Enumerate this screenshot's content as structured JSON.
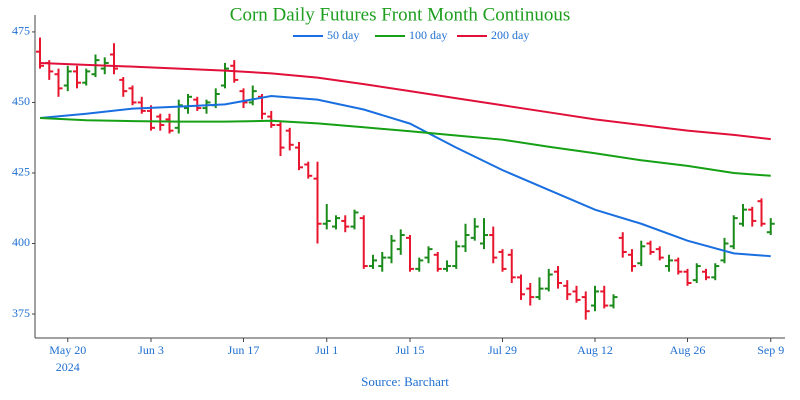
{
  "chart_data": {
    "type": "ohlc",
    "title": "Corn Daily Futures Front Month Continuous",
    "source": "Source: Barchart",
    "title_color": "#1e9e1e",
    "axis_text_color": "#1f6fd0",
    "up_color": "#1a8a1a",
    "down_color": "#e8152e",
    "categories": [
      "May 15",
      "May 16",
      "May 17",
      "May 20",
      "May 21",
      "May 22",
      "May 23",
      "May 24",
      "May 28",
      "May 29",
      "May 30",
      "May 31",
      "Jun 3",
      "Jun 4",
      "Jun 5",
      "Jun 6",
      "Jun 7",
      "Jun 10",
      "Jun 11",
      "Jun 12",
      "Jun 13",
      "Jun 14",
      "Jun 17",
      "Jun 18",
      "Jun 20",
      "Jun 21",
      "Jun 24",
      "Jun 25",
      "Jun 26",
      "Jun 27",
      "Jun 28",
      "Jul 1",
      "Jul 2",
      "Jul 3",
      "Jul 5",
      "Jul 8",
      "Jul 9",
      "Jul 10",
      "Jul 11",
      "Jul 12",
      "Jul 15",
      "Jul 16",
      "Jul 17",
      "Jul 18",
      "Jul 19",
      "Jul 22",
      "Jul 23",
      "Jul 24",
      "Jul 25",
      "Jul 26",
      "Jul 29",
      "Jul 30",
      "Jul 31",
      "Aug 1",
      "Aug 2",
      "Aug 5",
      "Aug 6",
      "Aug 7",
      "Aug 8",
      "Aug 9",
      "Aug 12",
      "Aug 13",
      "Aug 14",
      "Aug 15",
      "Aug 16",
      "Aug 19",
      "Aug 20",
      "Aug 21",
      "Aug 22",
      "Aug 23",
      "Aug 26",
      "Aug 27",
      "Aug 28",
      "Aug 29",
      "Aug 30",
      "Sep 3",
      "Sep 4",
      "Sep 5",
      "Sep 6",
      "Sep 9"
    ],
    "open": [
      468,
      464,
      460,
      456,
      461,
      457,
      460,
      462,
      467,
      458,
      455,
      450,
      447,
      445,
      444,
      441,
      448,
      451,
      448,
      449,
      456,
      463,
      454,
      450,
      452,
      445,
      442,
      440,
      434,
      428,
      423,
      407,
      406,
      408,
      406,
      409,
      392,
      392,
      395,
      398,
      402,
      391,
      395,
      396,
      391,
      392,
      399,
      402,
      400,
      403,
      397,
      396,
      388,
      384,
      381,
      384,
      390,
      385,
      383,
      381,
      378,
      383,
      378,
      402,
      396,
      393,
      400,
      398,
      392,
      394,
      390,
      387,
      390,
      388,
      394,
      399,
      407,
      412,
      415,
      404
    ],
    "high": [
      473,
      465,
      462,
      463,
      463,
      462,
      467,
      466,
      471,
      459,
      456,
      452,
      449,
      446,
      446,
      451,
      453,
      452,
      451,
      455,
      464,
      465,
      455,
      456,
      453,
      447,
      443,
      441,
      436,
      429,
      429,
      414,
      410,
      410,
      412,
      410,
      396,
      397,
      403,
      405,
      403,
      395,
      399,
      397,
      394,
      401,
      407,
      409,
      409,
      406,
      398,
      398,
      389,
      386,
      388,
      391,
      392,
      387,
      385,
      383,
      385,
      385,
      382,
      404,
      398,
      401,
      401,
      399,
      396,
      395,
      391,
      393,
      391,
      393,
      402,
      410,
      414,
      413,
      416,
      409
    ],
    "low": [
      462,
      458,
      452,
      454,
      455,
      456,
      459,
      460,
      460,
      452,
      449,
      446,
      440,
      440,
      439,
      439,
      446,
      447,
      446,
      448,
      455,
      457,
      448,
      449,
      444,
      441,
      431,
      433,
      426,
      423,
      400,
      405,
      405,
      404,
      405,
      391,
      391,
      390,
      393,
      396,
      390,
      390,
      393,
      390,
      390,
      391,
      397,
      401,
      398,
      393,
      390,
      386,
      380,
      378,
      380,
      383,
      384,
      380,
      379,
      373,
      376,
      377,
      377,
      395,
      390,
      392,
      396,
      394,
      390,
      389,
      385,
      386,
      387,
      387,
      393,
      398,
      406,
      406,
      406,
      403
    ],
    "close": [
      463,
      461,
      455,
      461,
      457,
      461,
      465,
      464,
      462,
      454,
      450,
      447,
      441,
      442,
      440,
      449,
      452,
      448,
      450,
      453,
      462,
      458,
      450,
      454,
      446,
      442,
      434,
      435,
      427,
      424,
      407,
      408,
      409,
      406,
      411,
      392,
      394,
      395,
      401,
      403,
      391,
      394,
      398,
      391,
      392,
      399,
      403,
      406,
      403,
      395,
      391,
      388,
      382,
      381,
      384,
      389,
      386,
      382,
      380,
      376,
      383,
      378,
      381,
      397,
      392,
      399,
      397,
      395,
      394,
      390,
      386,
      392,
      388,
      392,
      400,
      409,
      412,
      408,
      407,
      407
    ],
    "moving_averages": [
      {
        "name": "50 day",
        "color": "#1a6fe0",
        "x": [
          "May 15",
          "May 22",
          "May 30",
          "Jun 6",
          "Jun 13",
          "Jun 21",
          "Jun 28",
          "Jul 8",
          "Jul 15",
          "Jul 22",
          "Jul 29",
          "Aug 5",
          "Aug 12",
          "Aug 19",
          "Aug 26",
          "Sep 3",
          "Sep 9"
        ],
        "values": [
          444.5,
          446,
          447.8,
          448.5,
          449.3,
          452.3,
          451,
          447.5,
          442.5,
          434,
          426,
          419,
          412,
          407,
          401,
          396.5,
          395.5
        ]
      },
      {
        "name": "100 day",
        "color": "#15a015",
        "x": [
          "May 15",
          "May 22",
          "May 30",
          "Jun 6",
          "Jun 13",
          "Jun 21",
          "Jun 28",
          "Jul 8",
          "Jul 15",
          "Jul 22",
          "Jul 29",
          "Aug 5",
          "Aug 12",
          "Aug 19",
          "Aug 26",
          "Sep 3",
          "Sep 9"
        ],
        "values": [
          444.5,
          443.7,
          443.4,
          443.2,
          443.2,
          443.5,
          442.6,
          441.2,
          439.8,
          438.3,
          436.8,
          434.3,
          432,
          429.5,
          427.5,
          425,
          424
        ]
      },
      {
        "name": "200 day",
        "color": "#e0103a",
        "x": [
          "May 15",
          "May 22",
          "May 30",
          "Jun 6",
          "Jun 13",
          "Jun 21",
          "Jun 28",
          "Jul 8",
          "Jul 15",
          "Jul 22",
          "Jul 29",
          "Aug 5",
          "Aug 12",
          "Aug 19",
          "Aug 26",
          "Sep 3",
          "Sep 9"
        ],
        "values": [
          464,
          463.3,
          462.7,
          462,
          461.3,
          460.3,
          458.8,
          456.5,
          454,
          451.5,
          449,
          446.5,
          444,
          442,
          440,
          438.5,
          437
        ]
      }
    ],
    "ylim": [
      366.5,
      481
    ],
    "yticks": [
      375,
      400,
      425,
      450,
      475
    ],
    "xticks": [
      "May 20",
      "Jun 3",
      "Jun 17",
      "Jul 1",
      "Jul 15",
      "Jul 29",
      "Aug 12",
      "Aug 26",
      "Sep 9"
    ],
    "x_year_label": "2024",
    "grid": false
  }
}
